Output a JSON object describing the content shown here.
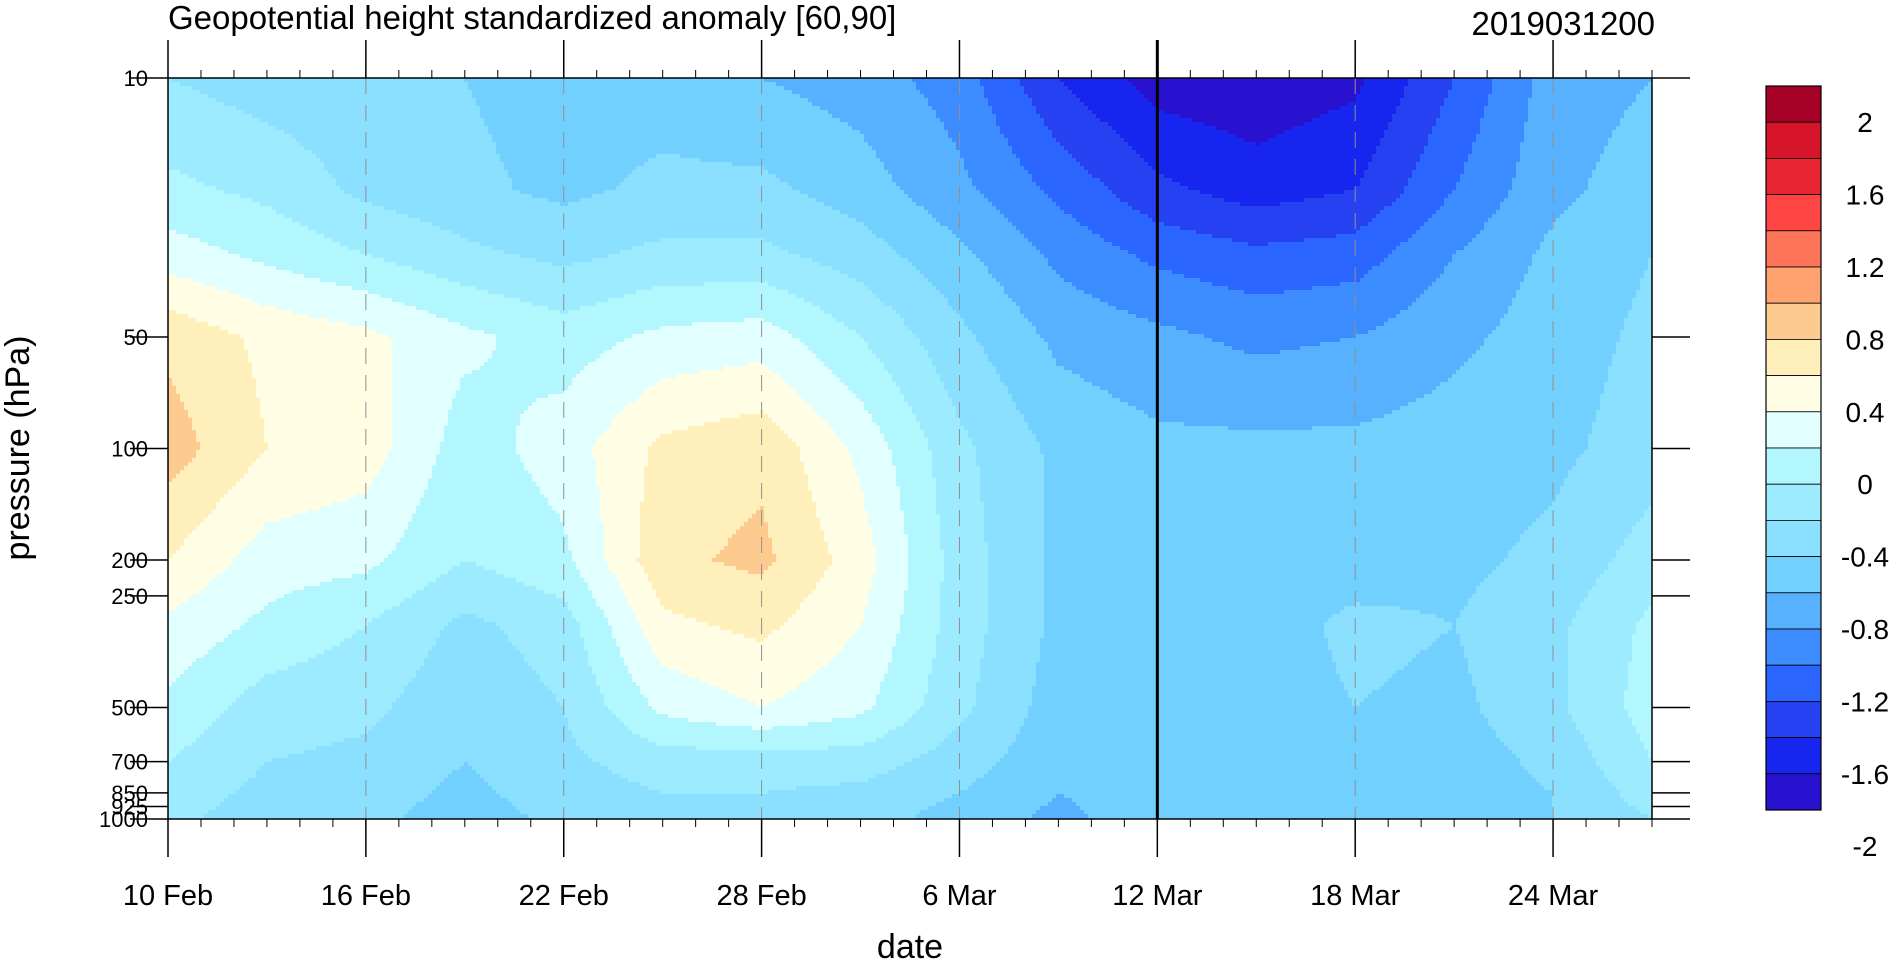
{
  "chart_data": {
    "type": "heatmap",
    "title": "Geopotential height standardized anomaly [60,90]",
    "date_label": "2019031200",
    "xlabel": "date",
    "ylabel": "pressure (hPa)",
    "x_ticks": [
      "10 Feb",
      "16 Feb",
      "22 Feb",
      "28 Feb",
      "6 Mar",
      "12 Mar",
      "18 Mar",
      "24 Mar"
    ],
    "x_range_days": [
      0,
      45
    ],
    "marked_date": "12 Mar",
    "y_scale": "log",
    "y_ticks": [
      10,
      50,
      100,
      200,
      250,
      500,
      700,
      850,
      925,
      1000
    ],
    "y_range": [
      1000,
      10
    ],
    "grid": "vertical dashed at labeled dates",
    "colorbar_labels": [
      "2",
      "1.6",
      "1.2",
      "0.8",
      "0.4",
      "0",
      "-0.4",
      "-0.8",
      "-1.2",
      "-1.6",
      "-2"
    ],
    "colorbar_colors": [
      "#A50026",
      "#D6152A",
      "#E82633",
      "#FF4444",
      "#FE7458",
      "#FFA36E",
      "#FDCB90",
      "#FFEFBB",
      "#FFFDE4",
      "#E2FFFF",
      "#B3F7FE",
      "#9DEBFF",
      "#8AE0FE",
      "#72D0FF",
      "#57B1FF",
      "#3C8CFF",
      "#2A65FF",
      "#2641F2",
      "#1726EE",
      "#2812D0"
    ],
    "anomaly_grid_dates": [
      "10 Feb",
      "13 Feb",
      "16 Feb",
      "19 Feb",
      "22 Feb",
      "25 Feb",
      "28 Feb",
      "3 Mar",
      "6 Mar",
      "9 Mar",
      "12 Mar",
      "15 Mar",
      "18 Mar",
      "21 Mar",
      "24 Mar",
      "27 Mar"
    ],
    "anomaly_grid_levels": [
      10,
      20,
      30,
      50,
      100,
      200,
      300,
      500,
      700,
      850,
      1000
    ],
    "anomaly_values": [
      [
        -0.4,
        -0.5,
        -0.55,
        -0.6,
        -0.7,
        -0.7,
        -0.8,
        -0.9,
        -1.1,
        -1.6,
        -1.9,
        -1.95,
        -1.85,
        -1.4,
        -0.9,
        -0.8
      ],
      [
        -0.15,
        -0.25,
        -0.45,
        -0.55,
        -0.65,
        -0.55,
        -0.55,
        -0.7,
        -0.95,
        -1.25,
        -1.55,
        -1.7,
        -1.6,
        -1.2,
        -0.85,
        -0.7
      ],
      [
        0.1,
        -0.05,
        -0.2,
        -0.35,
        -0.45,
        -0.35,
        -0.35,
        -0.5,
        -0.75,
        -1.05,
        -1.25,
        -1.35,
        -1.3,
        -1.0,
        -0.75,
        -0.6
      ],
      [
        0.55,
        0.35,
        0.25,
        0.05,
        -0.1,
        0.05,
        0.1,
        -0.2,
        -0.55,
        -0.85,
        -0.95,
        -1.05,
        -1.0,
        -0.85,
        -0.7,
        -0.55
      ],
      [
        0.7,
        0.4,
        0.3,
        -0.1,
        0.1,
        0.45,
        0.55,
        0.15,
        -0.35,
        -0.65,
        -0.75,
        -0.75,
        -0.75,
        -0.7,
        -0.65,
        -0.5
      ],
      [
        0.4,
        0.1,
        0.05,
        -0.2,
        -0.05,
        0.55,
        0.65,
        0.3,
        -0.3,
        -0.65,
        -0.7,
        -0.7,
        -0.7,
        -0.65,
        -0.55,
        -0.3
      ],
      [
        0.15,
        -0.05,
        -0.2,
        -0.45,
        -0.3,
        0.35,
        0.45,
        0.2,
        -0.3,
        -0.65,
        -0.7,
        -0.7,
        -0.55,
        -0.6,
        -0.45,
        -0.15
      ],
      [
        -0.05,
        -0.3,
        -0.35,
        -0.55,
        -0.4,
        0.05,
        0.2,
        0.05,
        -0.35,
        -0.7,
        -0.7,
        -0.7,
        -0.6,
        -0.65,
        -0.45,
        -0.1
      ],
      [
        -0.2,
        -0.4,
        -0.45,
        -0.6,
        -0.45,
        -0.3,
        -0.3,
        -0.3,
        -0.5,
        -0.75,
        -0.7,
        -0.7,
        -0.65,
        -0.7,
        -0.55,
        -0.2
      ],
      [
        -0.3,
        -0.45,
        -0.5,
        -0.65,
        -0.5,
        -0.4,
        -0.4,
        -0.45,
        -0.6,
        -0.8,
        -0.7,
        -0.7,
        -0.7,
        -0.7,
        -0.6,
        -0.3
      ],
      [
        -0.35,
        -0.5,
        -0.55,
        -0.7,
        -0.55,
        -0.45,
        -0.45,
        -0.5,
        -0.7,
        -0.85,
        -0.7,
        -0.7,
        -0.7,
        -0.7,
        -0.6,
        -0.4
      ]
    ]
  }
}
